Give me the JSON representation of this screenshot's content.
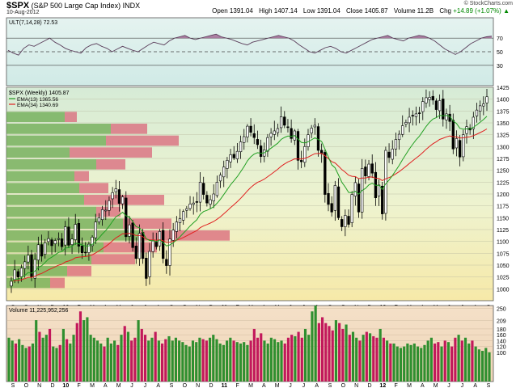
{
  "header": {
    "symbol": "$SPX",
    "name": "(S&P 500 Large Cap Index)",
    "exchange": "INDX",
    "date": "10-Aug-2012",
    "credit": "© StockCharts.com",
    "open_label": "Open",
    "open": "1391.04",
    "high_label": "High",
    "high": "1407.14",
    "low_label": "Low",
    "low": "1391.04",
    "close_label": "Close",
    "close": "1405.87",
    "volume_label": "Volume",
    "volume": "11.2B",
    "chg_label": "Chg",
    "chg": "+14.89 (+1.07%)",
    "chg_arrow": "▲"
  },
  "colors": {
    "up": "#2f8f2f",
    "down": "#c2185b",
    "ema13": "#22a022",
    "ema34": "#e02020",
    "vbp_up": "#6aa84f",
    "vbp_down": "#d9667a",
    "ult_line": "#5a3d5a",
    "ult_fill": "#9b5a8a"
  },
  "chart_data": [
    {
      "type": "line",
      "panel": "Ultimate Oscillator",
      "title": "ULT(7,14,28) 72.53",
      "ylim": [
        0,
        100
      ],
      "y_ticks": [
        30,
        50,
        70
      ],
      "reference_lines": [
        30,
        50,
        70
      ],
      "values": [
        52,
        48,
        45,
        55,
        60,
        58,
        62,
        66,
        70,
        64,
        60,
        55,
        52,
        50,
        48,
        56,
        60,
        62,
        58,
        55,
        50,
        54,
        58,
        55,
        52,
        50,
        55,
        60,
        64,
        62,
        60,
        66,
        70,
        72,
        74,
        70,
        68,
        70,
        72,
        74,
        76,
        72,
        70,
        68,
        65,
        62,
        60,
        64,
        66,
        68,
        70,
        72,
        74,
        72,
        70,
        66,
        60,
        55,
        50,
        48,
        52,
        56,
        58,
        55,
        50,
        48,
        52,
        56,
        60,
        64,
        68,
        70,
        72,
        74,
        70,
        68,
        66,
        70,
        72,
        74,
        73,
        70,
        66,
        60,
        54,
        50,
        46,
        50,
        56,
        62,
        66,
        70,
        72,
        73
      ]
    },
    {
      "type": "candlestick",
      "panel": "Price",
      "title": "$SPX (Weekly) 1405.87",
      "ylim": [
        975,
        1425
      ],
      "y_ticks": [
        1000,
        1025,
        1050,
        1075,
        1100,
        1125,
        1150,
        1175,
        1200,
        1225,
        1250,
        1275,
        1300,
        1325,
        1350,
        1375,
        1400,
        1425
      ],
      "x_ticks": [
        "S",
        "O",
        "N",
        "D",
        "10",
        "F",
        "M",
        "A",
        "M",
        "J",
        "J",
        "A",
        "S",
        "O",
        "N",
        "D",
        "11",
        "F",
        "M",
        "A",
        "M",
        "J",
        "J",
        "A",
        "S",
        "O",
        "N",
        "D",
        "12",
        "F",
        "M",
        "A",
        "M",
        "J",
        "J",
        "A",
        "S"
      ],
      "series": [
        {
          "name": "EMA(13) 1365.56",
          "values_last": 1365.56
        },
        {
          "name": "EMA(34) 1340.69",
          "values_last": 1340.69
        }
      ],
      "close": [
        1016,
        1040,
        1025,
        1044,
        1057,
        1071,
        1025,
        1062,
        1093,
        1069,
        1097,
        1106,
        1091,
        1102,
        1106,
        1089,
        1131,
        1092,
        1105,
        1136,
        1090,
        1076,
        1077,
        1094,
        1109,
        1141,
        1150,
        1167,
        1166,
        1186,
        1203,
        1211,
        1180,
        1194,
        1110,
        1135,
        1087,
        1064,
        1117,
        1064,
        1022,
        1079,
        1101,
        1089,
        1121,
        1064,
        1049,
        1105,
        1124,
        1141,
        1148,
        1163,
        1169,
        1179,
        1181,
        1183,
        1225,
        1199,
        1181,
        1188,
        1200,
        1225,
        1240,
        1257,
        1271,
        1283,
        1276,
        1290,
        1310,
        1321,
        1343,
        1330,
        1319,
        1304,
        1279,
        1293,
        1319,
        1328,
        1333,
        1338,
        1363,
        1345,
        1340,
        1317,
        1333,
        1271,
        1268,
        1300,
        1325,
        1339,
        1345,
        1292,
        1286,
        1199,
        1178,
        1162,
        1218,
        1150,
        1131,
        1155,
        1136,
        1199,
        1224,
        1162,
        1254,
        1238,
        1263,
        1244,
        1192,
        1219,
        1158,
        1292,
        1277,
        1295,
        1315,
        1326,
        1344,
        1351,
        1362,
        1365,
        1369,
        1370,
        1395,
        1403,
        1404,
        1398,
        1378,
        1397,
        1358,
        1369,
        1353,
        1295,
        1317,
        1278,
        1325,
        1342,
        1335,
        1362,
        1377,
        1386,
        1390,
        1405
      ]
    },
    {
      "type": "bar",
      "panel": "Volume by Price",
      "orientation": "horizontal",
      "ylim": [
        975,
        1425
      ],
      "bands": [
        {
          "bottom": 1000,
          "top": 1025,
          "up": 18,
          "down": 6
        },
        {
          "bottom": 1025,
          "top": 1050,
          "up": 25,
          "down": 10
        },
        {
          "bottom": 1050,
          "top": 1075,
          "up": 35,
          "down": 18
        },
        {
          "bottom": 1075,
          "top": 1100,
          "up": 40,
          "down": 22
        },
        {
          "bottom": 1100,
          "top": 1125,
          "up": 55,
          "down": 37
        },
        {
          "bottom": 1125,
          "top": 1150,
          "up": 48,
          "down": 20
        },
        {
          "bottom": 1150,
          "top": 1175,
          "up": 37,
          "down": 10
        },
        {
          "bottom": 1175,
          "top": 1200,
          "up": 32,
          "down": 33
        },
        {
          "bottom": 1200,
          "top": 1225,
          "up": 30,
          "down": 12
        },
        {
          "bottom": 1225,
          "top": 1250,
          "up": 28,
          "down": 6
        },
        {
          "bottom": 1250,
          "top": 1275,
          "up": 37,
          "down": 12
        },
        {
          "bottom": 1275,
          "top": 1300,
          "up": 26,
          "down": 34
        },
        {
          "bottom": 1300,
          "top": 1325,
          "up": 41,
          "down": 30
        },
        {
          "bottom": 1325,
          "top": 1350,
          "up": 43,
          "down": 15
        },
        {
          "bottom": 1350,
          "top": 1375,
          "up": 24,
          "down": 5
        }
      ]
    },
    {
      "type": "bar",
      "panel": "Volume",
      "title": "Volume 11,225,952,256",
      "ylabel": "",
      "ylim": [
        0,
        260
      ],
      "y_ticks": [
        100,
        120,
        140,
        160,
        180,
        209,
        250
      ],
      "y_tick_labels": [
        "100",
        "120",
        "140",
        "160",
        "180",
        "209",
        "250"
      ],
      "values": [
        150,
        140,
        130,
        145,
        125,
        115,
        120,
        130,
        210,
        170,
        150,
        160,
        180,
        120,
        115,
        125,
        180,
        145,
        130,
        160,
        200,
        240,
        210,
        220,
        160,
        150,
        140,
        130,
        120,
        150,
        130,
        140,
        125,
        160,
        190,
        170,
        140,
        150,
        210,
        180,
        160,
        140,
        150,
        170,
        140,
        130,
        145,
        155,
        140,
        150,
        140,
        135,
        125,
        120,
        140,
        135,
        150,
        145,
        140,
        150,
        160,
        145,
        130,
        125,
        140,
        150,
        140,
        135,
        130,
        135,
        125,
        140,
        180,
        150,
        165,
        140,
        130,
        150,
        145,
        135,
        140,
        130,
        150,
        160,
        155,
        170,
        150,
        180,
        160,
        240,
        260,
        200,
        220,
        200,
        190,
        175,
        210,
        200,
        180,
        195,
        160,
        170,
        150,
        140,
        160,
        170,
        165,
        155,
        150,
        180,
        150,
        140,
        130,
        130,
        120,
        115,
        120,
        130,
        125,
        130,
        120,
        115,
        125,
        140,
        150,
        130,
        135,
        120,
        140,
        135,
        120,
        150,
        160,
        140,
        150,
        130,
        140,
        120,
        110,
        105,
        115,
        100
      ],
      "x_ticks": [
        "S",
        "O",
        "N",
        "D",
        "10",
        "F",
        "M",
        "A",
        "M",
        "J",
        "J",
        "A",
        "S",
        "O",
        "N",
        "D",
        "11",
        "F",
        "M",
        "A",
        "M",
        "J",
        "J",
        "A",
        "S",
        "O",
        "N",
        "D",
        "12",
        "F",
        "M",
        "A",
        "M",
        "J",
        "J",
        "A",
        "S"
      ]
    }
  ]
}
